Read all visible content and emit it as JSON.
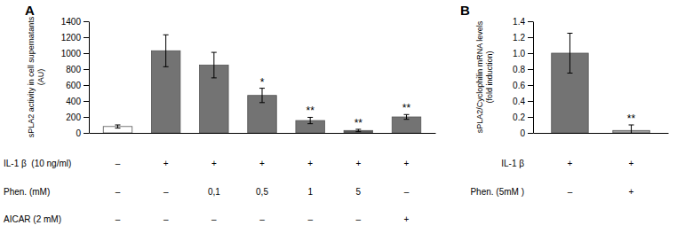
{
  "chart_data": [
    {
      "type": "bar",
      "title": "A",
      "ylabel": "sPLA2 activity in cell supernatants\n(AU)",
      "values": [
        80,
        1030,
        850,
        470,
        155,
        30,
        200
      ],
      "errors": [
        20,
        200,
        160,
        90,
        40,
        15,
        30
      ],
      "colors": [
        "#ffffff",
        "#737373",
        "#737373",
        "#737373",
        "#737373",
        "#595959",
        "#737373"
      ],
      "significance": [
        null,
        null,
        null,
        "*",
        "**",
        "**",
        "**"
      ],
      "condition_rows": [
        {
          "name": "IL-1 β  (10 ng/ml)",
          "labels": [
            "–",
            "+",
            "+",
            "+",
            "+",
            "+",
            "+"
          ]
        },
        {
          "name": "Phen. (mM)",
          "labels": [
            "–",
            "–",
            "0,1",
            "0,5",
            "1",
            "5",
            "–"
          ]
        },
        {
          "name": "AICAR (2 mM)",
          "labels": [
            "–",
            "–",
            "–",
            "–",
            "–",
            "–",
            "+"
          ]
        }
      ],
      "ylim": [
        0,
        1400
      ],
      "yticks": [
        0,
        200,
        400,
        600,
        800,
        1000,
        1200,
        1400
      ],
      "grid": false,
      "tick_labels": "y"
    },
    {
      "type": "bar",
      "title": "B",
      "ylabel": "sPLA2/Cyclophilin mRNA levels\n(fold induction)",
      "values": [
        1.0,
        0.03
      ],
      "errors": [
        0.25,
        0.07
      ],
      "colors": [
        "#737373",
        "#a0a0a0"
      ],
      "significance": [
        null,
        "**"
      ],
      "condition_rows": [
        {
          "name": "IL-1 β",
          "labels": [
            "+",
            "+"
          ]
        },
        {
          "name": "Phen. (5mM )",
          "labels": [
            "–",
            "+"
          ]
        }
      ],
      "ylim": [
        0,
        1.4
      ],
      "yticks": [
        0,
        0.2,
        0.4,
        0.6,
        0.8,
        {
          "value": 1.0,
          "label": "1.0"
        },
        1.2,
        1.4
      ],
      "grid": false,
      "tick_labels": "y"
    }
  ]
}
